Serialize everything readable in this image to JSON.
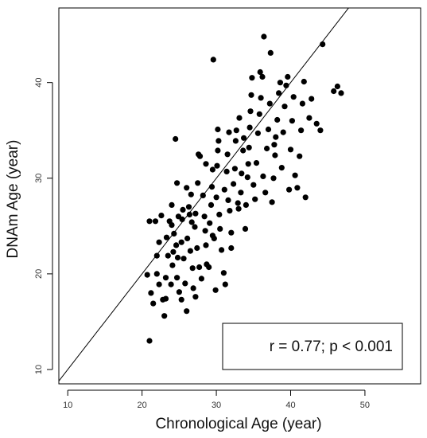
{
  "chart_data": {
    "type": "scatter",
    "title": "",
    "xlabel": "Chronological Age (year)",
    "ylabel": "DNAm Age (year)",
    "xlim": [
      8.8,
      57.5
    ],
    "ylim": [
      8.5,
      47.8
    ],
    "xticks": [
      10,
      20,
      30,
      40,
      50
    ],
    "yticks": [
      10,
      20,
      30,
      40
    ],
    "grid": false,
    "legend": "none",
    "reference_line": {
      "slope": 1,
      "intercept": 0
    },
    "annotation": {
      "text": "r = 0.77; p < 0.001",
      "placement": "bottom-right"
    },
    "marker_color": "#000000",
    "points": [
      [
        21.0,
        13.0
      ],
      [
        20.7,
        19.9
      ],
      [
        21.2,
        18.0
      ],
      [
        21.5,
        16.9
      ],
      [
        21.8,
        25.5
      ],
      [
        21.0,
        25.5
      ],
      [
        22.0,
        21.9
      ],
      [
        22.3,
        23.3
      ],
      [
        22.0,
        20.0
      ],
      [
        22.3,
        18.9
      ],
      [
        22.8,
        17.3
      ],
      [
        23.0,
        15.6
      ],
      [
        23.2,
        17.4
      ],
      [
        23.2,
        19.6
      ],
      [
        23.5,
        21.9
      ],
      [
        23.3,
        23.8
      ],
      [
        23.7,
        25.5
      ],
      [
        24.0,
        27.2
      ],
      [
        23.9,
        18.9
      ],
      [
        24.1,
        20.9
      ],
      [
        24.2,
        22.3
      ],
      [
        24.3,
        24.2
      ],
      [
        24.5,
        34.1
      ],
      [
        24.7,
        29.5
      ],
      [
        24.9,
        26.0
      ],
      [
        24.6,
        23.0
      ],
      [
        24.8,
        21.7
      ],
      [
        24.7,
        19.6
      ],
      [
        25.0,
        18.1
      ],
      [
        25.3,
        17.3
      ],
      [
        25.4,
        25.7
      ],
      [
        25.5,
        26.7
      ],
      [
        25.3,
        23.3
      ],
      [
        25.6,
        21.6
      ],
      [
        25.8,
        19.0
      ],
      [
        26.0,
        16.1
      ],
      [
        26.1,
        23.7
      ],
      [
        26.4,
        26.2
      ],
      [
        26.3,
        27.0
      ],
      [
        26.7,
        25.4
      ],
      [
        26.5,
        22.4
      ],
      [
        26.8,
        20.6
      ],
      [
        26.9,
        18.5
      ],
      [
        27.2,
        17.6
      ],
      [
        27.1,
        24.9
      ],
      [
        27.2,
        26.3
      ],
      [
        27.5,
        29.5
      ],
      [
        27.6,
        32.5
      ],
      [
        27.8,
        32.3
      ],
      [
        27.4,
        22.7
      ],
      [
        27.7,
        20.7
      ],
      [
        28.0,
        19.5
      ],
      [
        28.2,
        28.2
      ],
      [
        28.4,
        26.0
      ],
      [
        28.5,
        24.5
      ],
      [
        28.6,
        23.0
      ],
      [
        28.7,
        21.0
      ],
      [
        29.0,
        20.7
      ],
      [
        29.1,
        25.3
      ],
      [
        29.3,
        27.2
      ],
      [
        29.4,
        29.1
      ],
      [
        29.5,
        30.9
      ],
      [
        29.6,
        42.4
      ],
      [
        29.7,
        23.7
      ],
      [
        29.9,
        18.3
      ],
      [
        30.0,
        28.0
      ],
      [
        30.1,
        31.3
      ],
      [
        30.2,
        32.9
      ],
      [
        30.3,
        33.9
      ],
      [
        30.4,
        26.2
      ],
      [
        30.5,
        24.7
      ],
      [
        30.7,
        22.5
      ],
      [
        31.0,
        20.1
      ],
      [
        31.2,
        18.9
      ],
      [
        31.1,
        28.8
      ],
      [
        31.4,
        30.7
      ],
      [
        31.5,
        32.5
      ],
      [
        31.7,
        34.8
      ],
      [
        31.8,
        26.6
      ],
      [
        32.0,
        24.3
      ],
      [
        32.0,
        22.7
      ],
      [
        32.3,
        29.4
      ],
      [
        32.5,
        31.0
      ],
      [
        32.6,
        33.9
      ],
      [
        32.7,
        35.0
      ],
      [
        32.9,
        27.4
      ],
      [
        33.0,
        26.8
      ],
      [
        33.3,
        28.5
      ],
      [
        33.4,
        30.5
      ],
      [
        33.6,
        32.9
      ],
      [
        33.7,
        34.2
      ],
      [
        33.9,
        24.7
      ],
      [
        34.0,
        27.2
      ],
      [
        34.2,
        30.1
      ],
      [
        34.3,
        31.5
      ],
      [
        34.4,
        33.2
      ],
      [
        34.5,
        35.3
      ],
      [
        34.6,
        37.0
      ],
      [
        34.7,
        38.7
      ],
      [
        34.8,
        40.5
      ],
      [
        35.0,
        29.3
      ],
      [
        35.2,
        27.8
      ],
      [
        35.4,
        31.6
      ],
      [
        35.6,
        34.7
      ],
      [
        35.8,
        36.7
      ],
      [
        36.0,
        38.4
      ],
      [
        36.2,
        40.6
      ],
      [
        36.4,
        44.8
      ],
      [
        36.6,
        28.5
      ],
      [
        36.8,
        33.1
      ],
      [
        37.0,
        35.1
      ],
      [
        37.2,
        37.8
      ],
      [
        37.3,
        43.1
      ],
      [
        37.5,
        27.5
      ],
      [
        37.7,
        30.0
      ],
      [
        37.9,
        32.4
      ],
      [
        38.0,
        34.3
      ],
      [
        38.2,
        36.1
      ],
      [
        38.4,
        38.9
      ],
      [
        38.6,
        40.0
      ],
      [
        38.8,
        31.1
      ],
      [
        39.0,
        34.8
      ],
      [
        39.2,
        37.5
      ],
      [
        39.4,
        39.7
      ],
      [
        39.6,
        40.6
      ],
      [
        39.8,
        28.8
      ],
      [
        40.0,
        33.0
      ],
      [
        40.2,
        36.0
      ],
      [
        40.4,
        38.5
      ],
      [
        40.6,
        30.3
      ],
      [
        40.9,
        29.0
      ],
      [
        41.2,
        32.3
      ],
      [
        41.4,
        35.0
      ],
      [
        41.6,
        37.8
      ],
      [
        41.8,
        40.1
      ],
      [
        42.0,
        28.0
      ],
      [
        42.5,
        36.3
      ],
      [
        42.8,
        38.3
      ],
      [
        43.5,
        35.7
      ],
      [
        44.0,
        35.0
      ],
      [
        44.3,
        44.0
      ],
      [
        45.8,
        39.1
      ],
      [
        46.3,
        39.6
      ],
      [
        46.8,
        38.9
      ],
      [
        28.6,
        31.5
      ],
      [
        30.2,
        35.1
      ],
      [
        33.1,
        36.3
      ],
      [
        35.9,
        41.1
      ],
      [
        26.0,
        29.0
      ],
      [
        22.6,
        26.1
      ],
      [
        29.5,
        24.0
      ],
      [
        31.6,
        27.7
      ],
      [
        36.3,
        30.2
      ],
      [
        37.8,
        33.5
      ],
      [
        24.0,
        25.1
      ],
      [
        26.6,
        28.3
      ]
    ]
  }
}
